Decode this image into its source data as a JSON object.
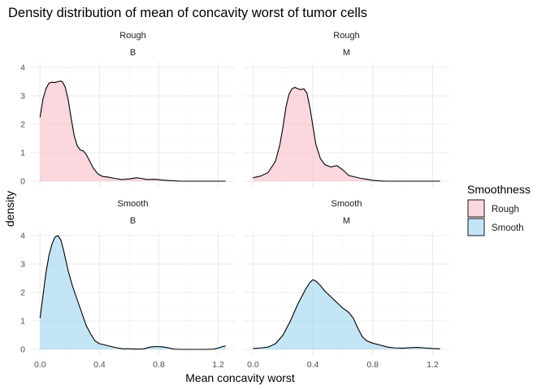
{
  "chart_data": {
    "type": "area",
    "title": "Density distribution of mean of concavity worst of tumor cells",
    "xlabel": "Mean concavity worst",
    "ylabel": "density",
    "xlim": [
      0,
      1.25
    ],
    "ylim": [
      0,
      4
    ],
    "x_ticks": [
      "0.0",
      "0.4",
      "0.8",
      "1.2"
    ],
    "y_ticks": [
      "0",
      "1",
      "2",
      "3",
      "4"
    ],
    "grid": true,
    "legend": {
      "title": "Smoothness",
      "placement": "right",
      "entries": [
        {
          "label": "Rough",
          "fill": "#F8BCC8"
        },
        {
          "label": "Smooth",
          "fill": "#9DD3EE"
        }
      ]
    },
    "colors": {
      "outline": "#000000",
      "grid_major": "#EBEBEB",
      "grid_minor": "#F5F5F5",
      "fill_opacity": 0.6
    },
    "panels": [
      {
        "row_label": "Rough",
        "col_label": "B",
        "fill": "#F8BCC8",
        "series": [
          [
            0.0,
            2.25
          ],
          [
            0.02,
            2.9
          ],
          [
            0.04,
            3.25
          ],
          [
            0.06,
            3.45
          ],
          [
            0.08,
            3.48
          ],
          [
            0.1,
            3.47
          ],
          [
            0.12,
            3.5
          ],
          [
            0.14,
            3.52
          ],
          [
            0.15,
            3.5
          ],
          [
            0.17,
            3.3
          ],
          [
            0.19,
            2.85
          ],
          [
            0.21,
            2.2
          ],
          [
            0.23,
            1.6
          ],
          [
            0.25,
            1.25
          ],
          [
            0.27,
            1.1
          ],
          [
            0.29,
            1.07
          ],
          [
            0.31,
            0.95
          ],
          [
            0.33,
            0.75
          ],
          [
            0.36,
            0.45
          ],
          [
            0.39,
            0.25
          ],
          [
            0.42,
            0.17
          ],
          [
            0.46,
            0.14
          ],
          [
            0.5,
            0.1
          ],
          [
            0.55,
            0.06
          ],
          [
            0.6,
            0.08
          ],
          [
            0.65,
            0.12
          ],
          [
            0.68,
            0.1
          ],
          [
            0.72,
            0.06
          ],
          [
            0.77,
            0.07
          ],
          [
            0.82,
            0.04
          ],
          [
            0.88,
            0.02
          ],
          [
            0.95,
            0.0
          ],
          [
            1.05,
            0.0
          ],
          [
            1.15,
            0.0
          ],
          [
            1.25,
            0.0
          ]
        ]
      },
      {
        "row_label": "Rough",
        "col_label": "M",
        "fill": "#F8BCC8",
        "series": [
          [
            0.0,
            0.12
          ],
          [
            0.05,
            0.18
          ],
          [
            0.1,
            0.3
          ],
          [
            0.15,
            0.7
          ],
          [
            0.18,
            1.3
          ],
          [
            0.2,
            1.9
          ],
          [
            0.22,
            2.6
          ],
          [
            0.24,
            3.05
          ],
          [
            0.26,
            3.25
          ],
          [
            0.28,
            3.3
          ],
          [
            0.3,
            3.25
          ],
          [
            0.32,
            3.22
          ],
          [
            0.34,
            3.25
          ],
          [
            0.36,
            3.1
          ],
          [
            0.38,
            2.6
          ],
          [
            0.4,
            1.95
          ],
          [
            0.42,
            1.3
          ],
          [
            0.45,
            0.8
          ],
          [
            0.48,
            0.58
          ],
          [
            0.52,
            0.5
          ],
          [
            0.56,
            0.55
          ],
          [
            0.6,
            0.4
          ],
          [
            0.64,
            0.2
          ],
          [
            0.68,
            0.15
          ],
          [
            0.72,
            0.1
          ],
          [
            0.76,
            0.07
          ],
          [
            0.8,
            0.03
          ],
          [
            0.85,
            0.01
          ],
          [
            0.9,
            0.0
          ],
          [
            1.0,
            0.0
          ],
          [
            1.1,
            0.0
          ],
          [
            1.2,
            0.0
          ],
          [
            1.25,
            0.0
          ]
        ]
      },
      {
        "row_label": "Smooth",
        "col_label": "B",
        "fill": "#9DD3EE",
        "series": [
          [
            0.0,
            1.1
          ],
          [
            0.02,
            1.9
          ],
          [
            0.04,
            2.7
          ],
          [
            0.06,
            3.3
          ],
          [
            0.08,
            3.7
          ],
          [
            0.1,
            3.95
          ],
          [
            0.12,
            4.0
          ],
          [
            0.14,
            3.85
          ],
          [
            0.16,
            3.45
          ],
          [
            0.19,
            2.75
          ],
          [
            0.22,
            2.2
          ],
          [
            0.25,
            1.75
          ],
          [
            0.28,
            1.3
          ],
          [
            0.31,
            0.85
          ],
          [
            0.34,
            0.55
          ],
          [
            0.37,
            0.3
          ],
          [
            0.4,
            0.2
          ],
          [
            0.44,
            0.15
          ],
          [
            0.48,
            0.1
          ],
          [
            0.52,
            0.05
          ],
          [
            0.56,
            0.02
          ],
          [
            0.6,
            0.02
          ],
          [
            0.65,
            0.01
          ],
          [
            0.7,
            0.02
          ],
          [
            0.74,
            0.08
          ],
          [
            0.78,
            0.1
          ],
          [
            0.82,
            0.09
          ],
          [
            0.86,
            0.06
          ],
          [
            0.9,
            0.01
          ],
          [
            0.95,
            0.0
          ],
          [
            1.05,
            0.0
          ],
          [
            1.12,
            0.0
          ],
          [
            1.17,
            0.01
          ],
          [
            1.2,
            0.05
          ],
          [
            1.23,
            0.1
          ],
          [
            1.25,
            0.12
          ]
        ]
      },
      {
        "row_label": "Smooth",
        "col_label": "M",
        "fill": "#9DD3EE",
        "series": [
          [
            0.0,
            0.03
          ],
          [
            0.05,
            0.05
          ],
          [
            0.1,
            0.08
          ],
          [
            0.15,
            0.2
          ],
          [
            0.2,
            0.5
          ],
          [
            0.25,
            1.0
          ],
          [
            0.3,
            1.6
          ],
          [
            0.35,
            2.1
          ],
          [
            0.38,
            2.35
          ],
          [
            0.4,
            2.45
          ],
          [
            0.42,
            2.4
          ],
          [
            0.45,
            2.25
          ],
          [
            0.48,
            2.05
          ],
          [
            0.52,
            1.85
          ],
          [
            0.56,
            1.65
          ],
          [
            0.6,
            1.45
          ],
          [
            0.64,
            1.3
          ],
          [
            0.67,
            1.1
          ],
          [
            0.7,
            0.75
          ],
          [
            0.73,
            0.45
          ],
          [
            0.76,
            0.3
          ],
          [
            0.8,
            0.22
          ],
          [
            0.85,
            0.15
          ],
          [
            0.9,
            0.08
          ],
          [
            0.95,
            0.05
          ],
          [
            1.0,
            0.04
          ],
          [
            1.05,
            0.06
          ],
          [
            1.1,
            0.07
          ],
          [
            1.15,
            0.05
          ],
          [
            1.2,
            0.03
          ],
          [
            1.25,
            0.02
          ]
        ]
      }
    ]
  }
}
